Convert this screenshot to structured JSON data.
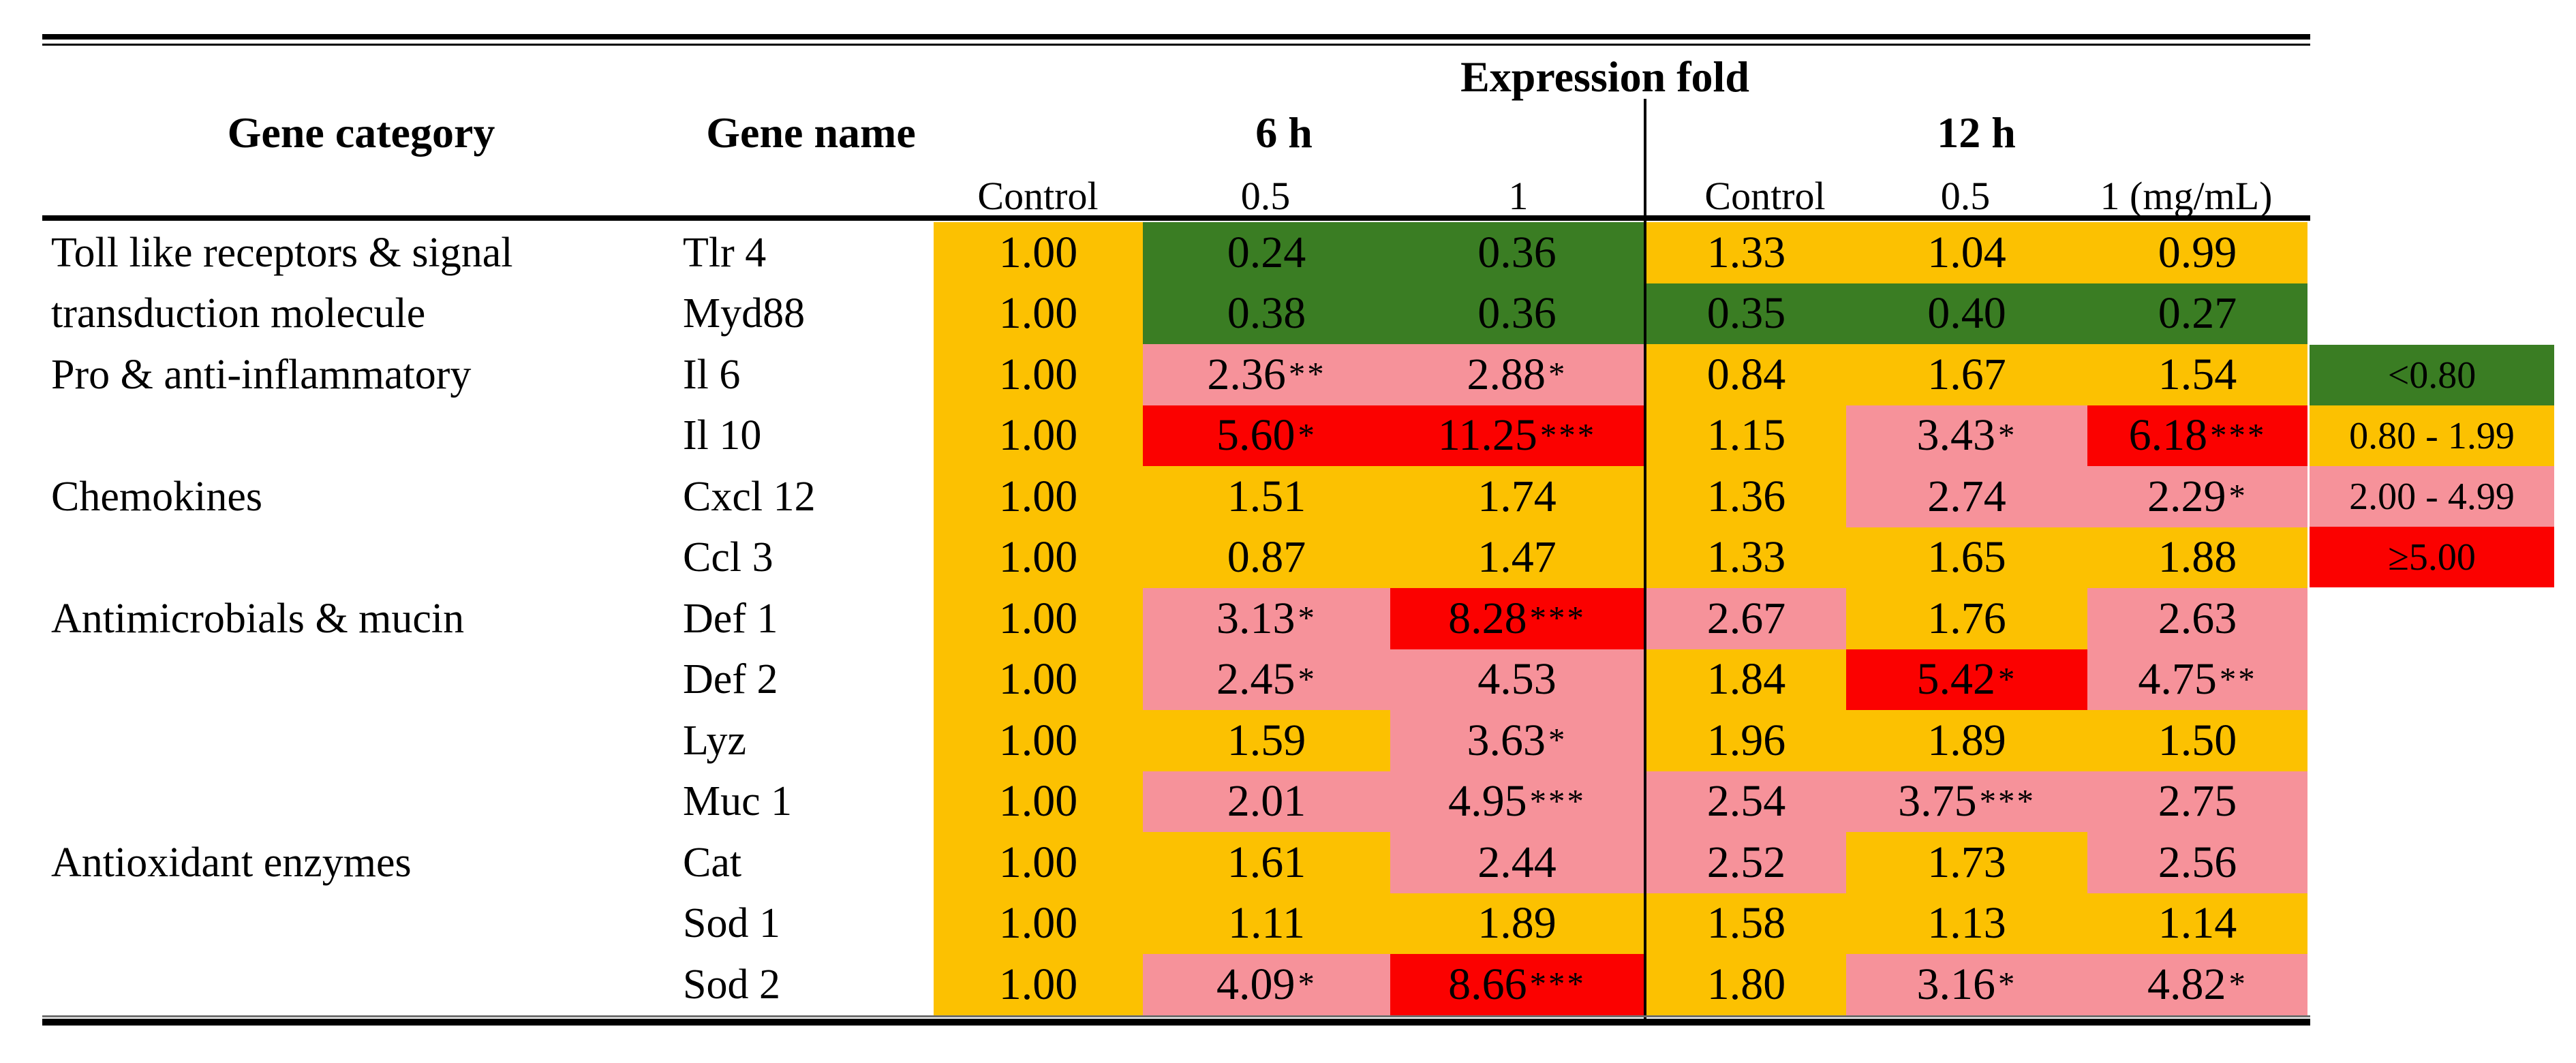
{
  "table": {
    "title": "Expression fold",
    "headers": {
      "gene_category": "Gene category",
      "gene_name": "Gene name",
      "time_6h": "6 h",
      "time_12h": "12 h",
      "sub": [
        "Control",
        "0.5",
        "1",
        "Control",
        "0.5",
        "1 (mg/mL)"
      ]
    }
  },
  "rows": [
    {
      "category": "Toll like receptors & signal",
      "gene": "Tlr 4"
    },
    {
      "category": "transduction molecule",
      "gene": "Myd88"
    },
    {
      "category": "Pro & anti-inflammatory",
      "gene": "Il 6"
    },
    {
      "category": "",
      "gene": "Il 10"
    },
    {
      "category": "Chemokines",
      "gene": "Cxcl 12"
    },
    {
      "category": "",
      "gene": "Ccl 3"
    },
    {
      "category": "Antimicrobials & mucin",
      "gene": "Def 1"
    },
    {
      "category": "",
      "gene": "Def 2"
    },
    {
      "category": "",
      "gene": "Lyz"
    },
    {
      "category": "",
      "gene": "Muc 1"
    },
    {
      "category": "Antioxidant enzymes",
      "gene": "Cat"
    },
    {
      "category": "",
      "gene": "Sod 1"
    },
    {
      "category": "",
      "gene": "Sod 2"
    }
  ],
  "chart_data": {
    "type": "heatmap",
    "title": "Expression fold",
    "col_labels": [
      "6 h Control",
      "6 h 0.5",
      "6 h 1",
      "12 h Control",
      "12 h 0.5",
      "12 h 1 (mg/mL)"
    ],
    "row_labels": [
      "Tlr 4",
      "Myd88",
      "Il 6",
      "Il 10",
      "Cxcl 12",
      "Ccl 3",
      "Def 1",
      "Def 2",
      "Lyz",
      "Muc 1",
      "Cat",
      "Sod 1",
      "Sod 2"
    ],
    "values": [
      [
        1.0,
        0.24,
        0.36,
        1.33,
        1.04,
        0.99
      ],
      [
        1.0,
        0.38,
        0.36,
        0.35,
        0.4,
        0.27
      ],
      [
        1.0,
        2.36,
        2.88,
        0.84,
        1.67,
        1.54
      ],
      [
        1.0,
        5.6,
        11.25,
        1.15,
        3.43,
        6.18
      ],
      [
        1.0,
        1.51,
        1.74,
        1.36,
        2.74,
        2.29
      ],
      [
        1.0,
        0.87,
        1.47,
        1.33,
        1.65,
        1.88
      ],
      [
        1.0,
        3.13,
        8.28,
        2.67,
        1.76,
        2.63
      ],
      [
        1.0,
        2.45,
        4.53,
        1.84,
        5.42,
        4.75
      ],
      [
        1.0,
        1.59,
        3.63,
        1.96,
        1.89,
        1.5
      ],
      [
        1.0,
        2.01,
        4.95,
        2.54,
        3.75,
        2.75
      ],
      [
        1.0,
        1.61,
        2.44,
        2.52,
        1.73,
        2.56
      ],
      [
        1.0,
        1.11,
        1.89,
        1.58,
        1.13,
        1.14
      ],
      [
        1.0,
        4.09,
        8.66,
        1.8,
        3.16,
        4.82
      ]
    ],
    "significance": [
      [
        "",
        "",
        "",
        "",
        "",
        ""
      ],
      [
        "",
        "",
        "",
        "",
        "",
        ""
      ],
      [
        "",
        "**",
        "*",
        "",
        "",
        ""
      ],
      [
        "",
        "*",
        "***",
        "",
        "*",
        "***"
      ],
      [
        "",
        "",
        "",
        "",
        "",
        "*"
      ],
      [
        "",
        "",
        "",
        "",
        "",
        ""
      ],
      [
        "",
        "*",
        "***",
        "",
        "",
        ""
      ],
      [
        "",
        "*",
        "",
        "",
        "*",
        "**"
      ],
      [
        "",
        "",
        "*",
        "",
        "",
        ""
      ],
      [
        "",
        "",
        "***",
        "",
        "***",
        ""
      ],
      [
        "",
        "",
        "",
        "",
        "",
        ""
      ],
      [
        "",
        "",
        "",
        "",
        "",
        ""
      ],
      [
        "",
        "*",
        "***",
        "",
        "*",
        "*"
      ]
    ],
    "color_scale": [
      {
        "label": "<0.80",
        "max": 0.8,
        "color": "#3A7D23"
      },
      {
        "label": "0.80 - 1.99",
        "min": 0.8,
        "max": 2.0,
        "color": "#FCC101"
      },
      {
        "label": "2.00 - 4.99",
        "min": 2.0,
        "max": 5.0,
        "color": "#F6929A"
      },
      {
        "label": "≥5.00",
        "min": 5.0,
        "color": "#FB0100"
      }
    ],
    "value_format": "2 decimals",
    "legend_position": "right"
  },
  "colors": {
    "text": "#000000",
    "background": "#FFFFFF",
    "rule": "#000000",
    "green": "#3A7D23",
    "orange": "#FCC101",
    "pink": "#F6929A",
    "red": "#FB0100"
  }
}
